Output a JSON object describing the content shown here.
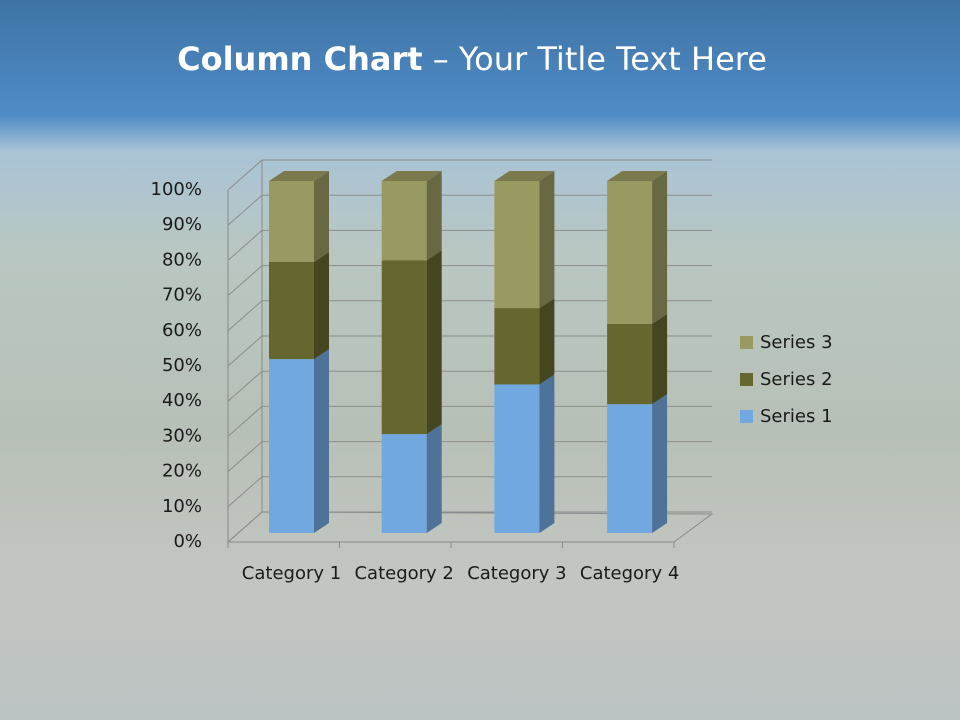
{
  "chart_data": {
    "type": "bar",
    "stacked": true,
    "view": "3d",
    "title": {
      "bold": "Column Chart",
      "text": "– Your Title Text Here"
    },
    "categories": [
      "Category 1",
      "Category 2",
      "Category 3",
      "Category 4"
    ],
    "series": [
      {
        "name": "Series 1",
        "color": "#72a8e0",
        "values": [
          49.4,
          28.1,
          42.2,
          36.6
        ]
      },
      {
        "name": "Series 2",
        "color": "#66672e",
        "values": [
          27.6,
          49.4,
          21.7,
          22.8
        ]
      },
      {
        "name": "Series 3",
        "color": "#999962",
        "values": [
          23.0,
          22.5,
          36.1,
          40.6
        ]
      }
    ],
    "ylim": [
      0,
      100
    ],
    "yticks": [
      {
        "value": 0,
        "label": "0%"
      },
      {
        "value": 10,
        "label": "10%"
      },
      {
        "value": 20,
        "label": "20%"
      },
      {
        "value": 30,
        "label": "30%"
      },
      {
        "value": 40,
        "label": "40%"
      },
      {
        "value": 50,
        "label": "50%"
      },
      {
        "value": 60,
        "label": "60%"
      },
      {
        "value": 70,
        "label": "70%"
      },
      {
        "value": 80,
        "label": "80%"
      },
      {
        "value": 90,
        "label": "90%"
      },
      {
        "value": 100,
        "label": "100%"
      }
    ],
    "grid": true,
    "legend": "right"
  }
}
